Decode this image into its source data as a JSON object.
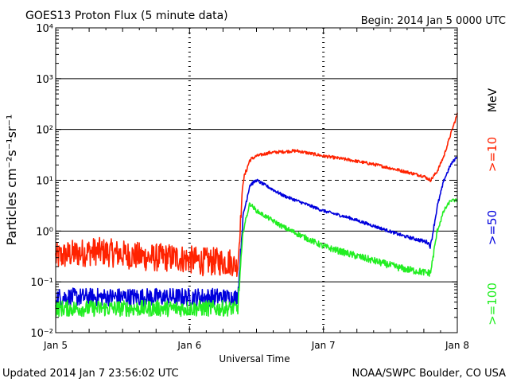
{
  "header": {
    "title": "GOES13 Proton Flux (5 minute data)",
    "begin": "Begin: 2014 Jan 5 0000 UTC"
  },
  "footer": {
    "updated": "Updated 2014 Jan  7 23:56:02 UTC",
    "credit": "NOAA/SWPC Boulder, CO USA"
  },
  "chart_data": {
    "type": "line",
    "title": "GOES13 Proton Flux (5 minute data)",
    "xlabel": "Universal Time",
    "ylabel": "Particles cm⁻²s⁻¹sr⁻¹",
    "yscale": "log",
    "ylim": [
      0.01,
      10000
    ],
    "xlim": [
      0,
      3
    ],
    "x_ticks": [
      {
        "value": 0,
        "label": "Jan 5"
      },
      {
        "value": 1,
        "label": "Jan 6"
      },
      {
        "value": 2,
        "label": "Jan 7"
      },
      {
        "value": 3,
        "label": "Jan 8"
      }
    ],
    "y_ticks": [
      {
        "value": 0.01,
        "label": "10⁻²"
      },
      {
        "value": 0.1,
        "label": "10⁻¹"
      },
      {
        "value": 1,
        "label": "10⁰"
      },
      {
        "value": 10,
        "label": "10¹"
      },
      {
        "value": 100,
        "label": "10²"
      },
      {
        "value": 1000,
        "label": "10³"
      },
      {
        "value": 10000,
        "label": "10⁴"
      }
    ],
    "grid": {
      "solid": [
        0.1,
        1,
        100,
        1000
      ],
      "dashed": [
        10
      ]
    },
    "units_label": "MeV",
    "series": [
      {
        "name": ">=10",
        "color": "#ff2200",
        "x": [
          0,
          0.1,
          0.3,
          0.5,
          0.7,
          0.9,
          1.1,
          1.3,
          1.36,
          1.4,
          1.45,
          1.5,
          1.6,
          1.8,
          2.0,
          2.2,
          2.4,
          2.6,
          2.75,
          2.8,
          2.85,
          2.9,
          2.95,
          3.0
        ],
        "y": [
          0.3,
          0.35,
          0.4,
          0.35,
          0.3,
          0.3,
          0.25,
          0.25,
          0.2,
          10,
          25,
          30,
          35,
          38,
          30,
          25,
          20,
          15,
          12,
          10,
          15,
          30,
          80,
          200
        ],
        "noise_dex": [
          0.28,
          0.28,
          0.28,
          0.28,
          0.28,
          0.28,
          0.28,
          0.28,
          0.2,
          0.05,
          0.04,
          0.03,
          0.03,
          0.03,
          0.03,
          0.03,
          0.03,
          0.03,
          0.03,
          0.03,
          0.03,
          0.03,
          0.03,
          0.03
        ]
      },
      {
        "name": ">=50",
        "color": "#0000dd",
        "x": [
          0,
          0.3,
          0.6,
          0.9,
          1.2,
          1.36,
          1.4,
          1.45,
          1.5,
          1.7,
          2.0,
          2.2,
          2.4,
          2.6,
          2.78,
          2.8,
          2.85,
          2.9,
          2.95,
          3.0
        ],
        "y": [
          0.05,
          0.05,
          0.05,
          0.05,
          0.05,
          0.05,
          2,
          8,
          10,
          5,
          2.5,
          1.8,
          1.2,
          0.8,
          0.6,
          0.5,
          3,
          10,
          20,
          30
        ],
        "noise_dex": [
          0.18,
          0.18,
          0.18,
          0.18,
          0.18,
          0.15,
          0.05,
          0.04,
          0.03,
          0.03,
          0.03,
          0.03,
          0.03,
          0.03,
          0.04,
          0.05,
          0.04,
          0.03,
          0.03,
          0.03
        ]
      },
      {
        "name": ">=100",
        "color": "#22ee22",
        "x": [
          0,
          0.3,
          0.6,
          0.9,
          1.2,
          1.36,
          1.4,
          1.45,
          1.5,
          1.7,
          2.0,
          2.2,
          2.4,
          2.6,
          2.78,
          2.8,
          2.85,
          2.9,
          2.95,
          3.0
        ],
        "y": [
          0.03,
          0.03,
          0.03,
          0.03,
          0.03,
          0.03,
          1,
          3.5,
          2.5,
          1.2,
          0.5,
          0.35,
          0.25,
          0.18,
          0.15,
          0.15,
          1,
          2.5,
          4,
          4
        ],
        "noise_dex": [
          0.16,
          0.16,
          0.16,
          0.16,
          0.16,
          0.14,
          0.05,
          0.04,
          0.04,
          0.05,
          0.06,
          0.07,
          0.07,
          0.07,
          0.07,
          0.07,
          0.05,
          0.04,
          0.03,
          0.03
        ]
      }
    ]
  }
}
